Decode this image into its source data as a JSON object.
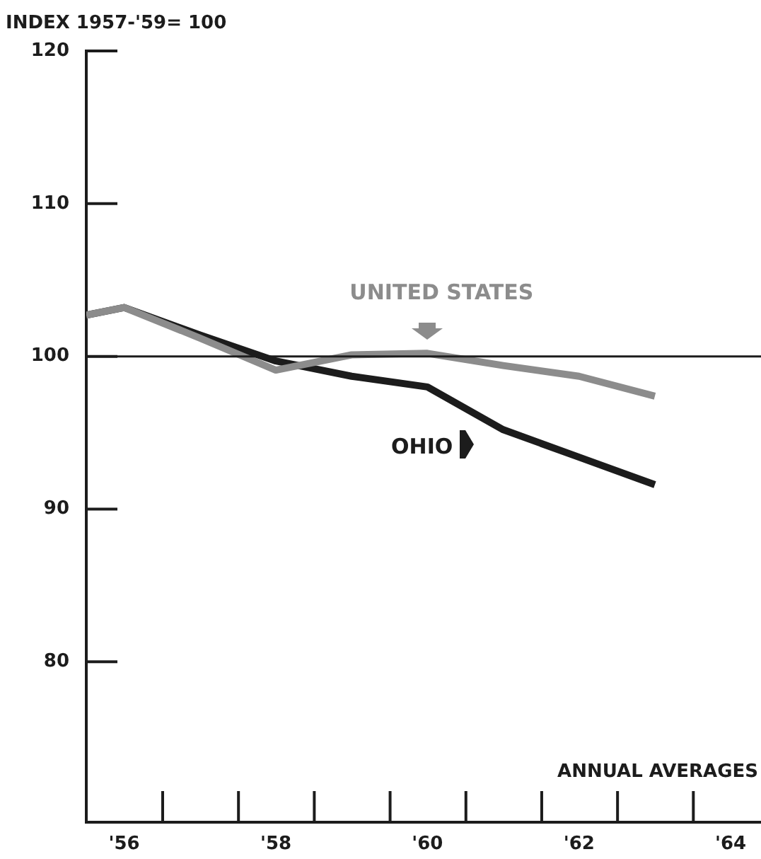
{
  "chart_data": {
    "type": "line",
    "ylabel": "INDEX 1957-'59= 100",
    "xlabel": "ANNUAL AVERAGES",
    "xlim": [
      1955.5,
      1964.4
    ],
    "xticks": [
      {
        "value": 1956,
        "label": "'56"
      },
      {
        "value": 1958,
        "label": "'58"
      },
      {
        "value": 1960,
        "label": "'60"
      },
      {
        "value": 1962,
        "label": "'62"
      },
      {
        "value": 1964,
        "label": "'64"
      }
    ],
    "ylim": [
      69.5,
      120
    ],
    "yticks": [
      80,
      90,
      100,
      110,
      120
    ],
    "x": [
      1955.5,
      1956,
      1957,
      1958,
      1959,
      1960,
      1961,
      1962,
      1963
    ],
    "series": [
      {
        "name": "UNITED STATES",
        "color": "#8c8c8c",
        "values": [
          102.7,
          103.2,
          101.2,
          99.1,
          100.1,
          100.2,
          99.4,
          98.7,
          97.4
        ]
      },
      {
        "name": "OHIO",
        "color": "#1c1c1c",
        "values": [
          102.7,
          103.2,
          101.4,
          99.7,
          98.7,
          98.0,
          95.2,
          93.4,
          91.6
        ]
      }
    ],
    "ref_lines": [
      {
        "axis": "y",
        "value": 100,
        "color": "#1c1c1c"
      }
    ],
    "grid": false,
    "legend": "center",
    "marker": "none",
    "line_style": "solid"
  }
}
